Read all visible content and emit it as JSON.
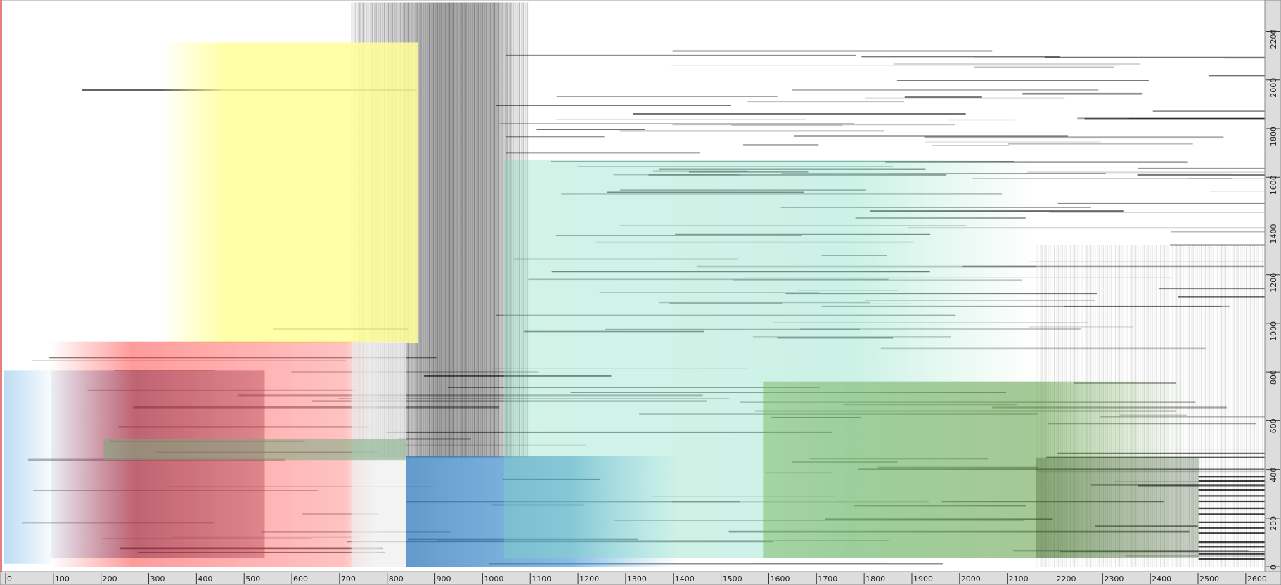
{
  "chart_data": {
    "type": "dotplot",
    "xlim": [
      0,
      2640
    ],
    "xticks": [
      0,
      100,
      200,
      300,
      400,
      500,
      600,
      700,
      800,
      900,
      1000,
      1100,
      1200,
      1300,
      1400,
      1500,
      1600,
      1700,
      1800,
      1900,
      2000,
      2100,
      2200,
      2300,
      2400,
      2500,
      2600
    ],
    "ylim": [
      -20,
      2320
    ],
    "yticks": [
      0,
      200,
      400,
      600,
      800,
      1000,
      1200,
      1400,
      1600,
      1800,
      2000,
      2200
    ]
  }
}
